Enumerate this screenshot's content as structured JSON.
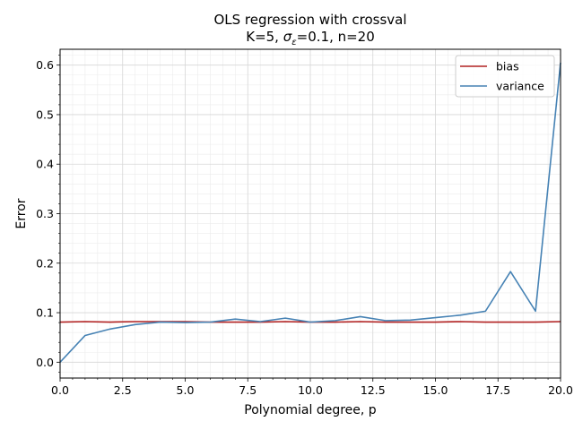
{
  "chart_data": {
    "type": "line",
    "title": "OLS regression with crossval",
    "subtitle": {
      "prefix": "K=5,  ",
      "sigma": "σ",
      "sigma_sub": "ε",
      "suffix": "=0.1,  n=20"
    },
    "xlabel": "Polynomial degree, p",
    "ylabel": "Error",
    "xlim": [
      0,
      20
    ],
    "ylim": [
      -0.032,
      0.632
    ],
    "xticks": [
      0,
      2.5,
      5,
      7.5,
      10,
      12.5,
      15,
      17.5,
      20
    ],
    "xtick_labels": [
      "0.0",
      "2.5",
      "5.0",
      "7.5",
      "10.0",
      "12.5",
      "15.0",
      "17.5",
      "20.0"
    ],
    "yticks": [
      0,
      0.1,
      0.2,
      0.3,
      0.4,
      0.5,
      0.6
    ],
    "ytick_labels": [
      "0.0",
      "0.1",
      "0.2",
      "0.3",
      "0.4",
      "0.5",
      "0.6"
    ],
    "grid": true,
    "legend_position": "top-right",
    "x": [
      0,
      1,
      2,
      3,
      4,
      5,
      6,
      7,
      8,
      9,
      10,
      11,
      12,
      13,
      14,
      15,
      16,
      17,
      18,
      19,
      20
    ],
    "series": [
      {
        "name": "bias",
        "color": "#b22222",
        "values": [
          0.081,
          0.082,
          0.081,
          0.082,
          0.082,
          0.082,
          0.081,
          0.081,
          0.081,
          0.082,
          0.081,
          0.081,
          0.082,
          0.081,
          0.081,
          0.081,
          0.082,
          0.081,
          0.081,
          0.081,
          0.082
        ]
      },
      {
        "name": "variance",
        "color": "#4682b4",
        "values": [
          0.0,
          0.054,
          0.067,
          0.076,
          0.081,
          0.08,
          0.081,
          0.087,
          0.082,
          0.089,
          0.081,
          0.084,
          0.092,
          0.084,
          0.085,
          0.09,
          0.095,
          0.103,
          0.183,
          0.103,
          0.605
        ]
      }
    ]
  }
}
